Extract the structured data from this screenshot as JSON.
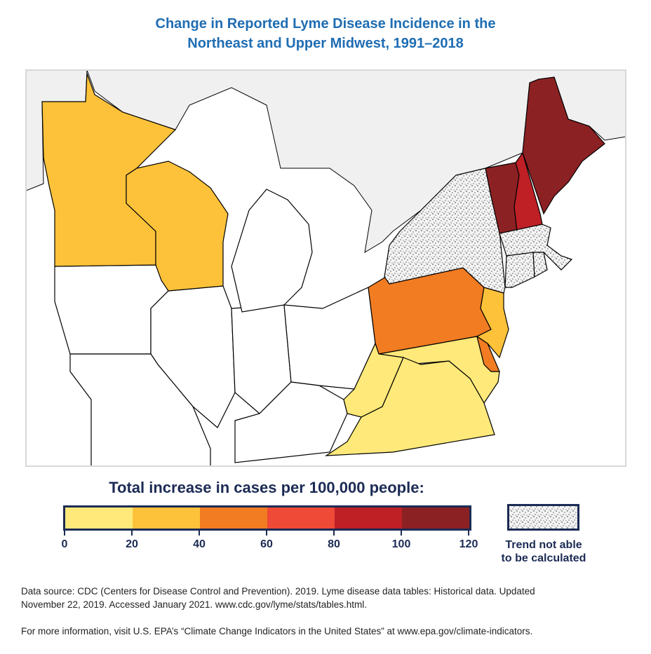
{
  "title": {
    "line1": "Change in Reported Lyme Disease Incidence in the",
    "line2": "Northeast and Upper Midwest, 1991–2018"
  },
  "map": {
    "colors": {
      "canada": "#f0f0f1",
      "us_land": "#ffffff",
      "border": "#000000"
    },
    "states": [
      {
        "name": "Minnesota",
        "category": "20-40"
      },
      {
        "name": "Wisconsin",
        "category": "20-40"
      },
      {
        "name": "Pennsylvania",
        "category": "40-60"
      },
      {
        "name": "New Jersey",
        "category": "20-40"
      },
      {
        "name": "Delaware",
        "category": "40-60"
      },
      {
        "name": "Maryland",
        "category": "0-20"
      },
      {
        "name": "Virginia",
        "category": "0-20"
      },
      {
        "name": "West Virginia",
        "category": "0-20"
      },
      {
        "name": "New York",
        "category": "not calculated"
      },
      {
        "name": "Vermont",
        "category": "100-120"
      },
      {
        "name": "New Hampshire",
        "category": "80-100"
      },
      {
        "name": "Maine",
        "category": "100-120"
      },
      {
        "name": "Massachusetts",
        "category": "not calculated"
      },
      {
        "name": "Connecticut",
        "category": "not calculated"
      },
      {
        "name": "Rhode Island",
        "category": "not calculated"
      }
    ]
  },
  "legend": {
    "title": "Total increase in cases per 100,000 people:",
    "bins": [
      {
        "range": "0-20",
        "color": "#fee97a"
      },
      {
        "range": "20-40",
        "color": "#fdc23a"
      },
      {
        "range": "40-60",
        "color": "#f17c22"
      },
      {
        "range": "60-80",
        "color": "#ef4a37"
      },
      {
        "range": "80-100",
        "color": "#be2026"
      },
      {
        "range": "100-120",
        "color": "#8c2123"
      }
    ],
    "ticks": [
      "0",
      "20",
      "40",
      "60",
      "80",
      "100",
      "120"
    ],
    "not_calculated": {
      "line1": "Trend not able",
      "line2": "to be calculated",
      "pattern": "stipple"
    }
  },
  "notes": {
    "source_line1": "Data source: CDC (Centers for Disease Control and Prevention). 2019. Lyme disease data tables: Historical data. Updated",
    "source_line2": "November 22, 2019. Accessed January 2021. www.cdc.gov/lyme/stats/tables.html.",
    "more_info": "For more information, visit U.S. EPA’s “Climate Change Indicators in the United States” at www.epa.gov/climate-indicators."
  }
}
